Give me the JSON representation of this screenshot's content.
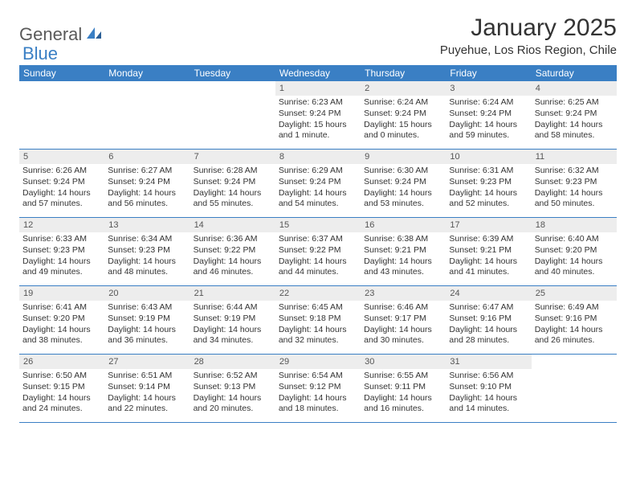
{
  "logo": {
    "part1": "General",
    "part2": "Blue"
  },
  "title": "January 2025",
  "location": "Puyehue, Los Rios Region, Chile",
  "colors": {
    "brand_blue": "#3a7fc4",
    "header_text": "#ffffff",
    "daynum_bg": "#ededed",
    "text": "#333333"
  },
  "day_headers": [
    "Sunday",
    "Monday",
    "Tuesday",
    "Wednesday",
    "Thursday",
    "Friday",
    "Saturday"
  ],
  "weeks": [
    [
      {
        "empty": true
      },
      {
        "empty": true
      },
      {
        "empty": true
      },
      {
        "n": "1",
        "sr": "Sunrise: 6:23 AM",
        "ss": "Sunset: 9:24 PM",
        "dl": "Daylight: 15 hours and 1 minute."
      },
      {
        "n": "2",
        "sr": "Sunrise: 6:24 AM",
        "ss": "Sunset: 9:24 PM",
        "dl": "Daylight: 15 hours and 0 minutes."
      },
      {
        "n": "3",
        "sr": "Sunrise: 6:24 AM",
        "ss": "Sunset: 9:24 PM",
        "dl": "Daylight: 14 hours and 59 minutes."
      },
      {
        "n": "4",
        "sr": "Sunrise: 6:25 AM",
        "ss": "Sunset: 9:24 PM",
        "dl": "Daylight: 14 hours and 58 minutes."
      }
    ],
    [
      {
        "n": "5",
        "sr": "Sunrise: 6:26 AM",
        "ss": "Sunset: 9:24 PM",
        "dl": "Daylight: 14 hours and 57 minutes."
      },
      {
        "n": "6",
        "sr": "Sunrise: 6:27 AM",
        "ss": "Sunset: 9:24 PM",
        "dl": "Daylight: 14 hours and 56 minutes."
      },
      {
        "n": "7",
        "sr": "Sunrise: 6:28 AM",
        "ss": "Sunset: 9:24 PM",
        "dl": "Daylight: 14 hours and 55 minutes."
      },
      {
        "n": "8",
        "sr": "Sunrise: 6:29 AM",
        "ss": "Sunset: 9:24 PM",
        "dl": "Daylight: 14 hours and 54 minutes."
      },
      {
        "n": "9",
        "sr": "Sunrise: 6:30 AM",
        "ss": "Sunset: 9:24 PM",
        "dl": "Daylight: 14 hours and 53 minutes."
      },
      {
        "n": "10",
        "sr": "Sunrise: 6:31 AM",
        "ss": "Sunset: 9:23 PM",
        "dl": "Daylight: 14 hours and 52 minutes."
      },
      {
        "n": "11",
        "sr": "Sunrise: 6:32 AM",
        "ss": "Sunset: 9:23 PM",
        "dl": "Daylight: 14 hours and 50 minutes."
      }
    ],
    [
      {
        "n": "12",
        "sr": "Sunrise: 6:33 AM",
        "ss": "Sunset: 9:23 PM",
        "dl": "Daylight: 14 hours and 49 minutes."
      },
      {
        "n": "13",
        "sr": "Sunrise: 6:34 AM",
        "ss": "Sunset: 9:23 PM",
        "dl": "Daylight: 14 hours and 48 minutes."
      },
      {
        "n": "14",
        "sr": "Sunrise: 6:36 AM",
        "ss": "Sunset: 9:22 PM",
        "dl": "Daylight: 14 hours and 46 minutes."
      },
      {
        "n": "15",
        "sr": "Sunrise: 6:37 AM",
        "ss": "Sunset: 9:22 PM",
        "dl": "Daylight: 14 hours and 44 minutes."
      },
      {
        "n": "16",
        "sr": "Sunrise: 6:38 AM",
        "ss": "Sunset: 9:21 PM",
        "dl": "Daylight: 14 hours and 43 minutes."
      },
      {
        "n": "17",
        "sr": "Sunrise: 6:39 AM",
        "ss": "Sunset: 9:21 PM",
        "dl": "Daylight: 14 hours and 41 minutes."
      },
      {
        "n": "18",
        "sr": "Sunrise: 6:40 AM",
        "ss": "Sunset: 9:20 PM",
        "dl": "Daylight: 14 hours and 40 minutes."
      }
    ],
    [
      {
        "n": "19",
        "sr": "Sunrise: 6:41 AM",
        "ss": "Sunset: 9:20 PM",
        "dl": "Daylight: 14 hours and 38 minutes."
      },
      {
        "n": "20",
        "sr": "Sunrise: 6:43 AM",
        "ss": "Sunset: 9:19 PM",
        "dl": "Daylight: 14 hours and 36 minutes."
      },
      {
        "n": "21",
        "sr": "Sunrise: 6:44 AM",
        "ss": "Sunset: 9:19 PM",
        "dl": "Daylight: 14 hours and 34 minutes."
      },
      {
        "n": "22",
        "sr": "Sunrise: 6:45 AM",
        "ss": "Sunset: 9:18 PM",
        "dl": "Daylight: 14 hours and 32 minutes."
      },
      {
        "n": "23",
        "sr": "Sunrise: 6:46 AM",
        "ss": "Sunset: 9:17 PM",
        "dl": "Daylight: 14 hours and 30 minutes."
      },
      {
        "n": "24",
        "sr": "Sunrise: 6:47 AM",
        "ss": "Sunset: 9:16 PM",
        "dl": "Daylight: 14 hours and 28 minutes."
      },
      {
        "n": "25",
        "sr": "Sunrise: 6:49 AM",
        "ss": "Sunset: 9:16 PM",
        "dl": "Daylight: 14 hours and 26 minutes."
      }
    ],
    [
      {
        "n": "26",
        "sr": "Sunrise: 6:50 AM",
        "ss": "Sunset: 9:15 PM",
        "dl": "Daylight: 14 hours and 24 minutes."
      },
      {
        "n": "27",
        "sr": "Sunrise: 6:51 AM",
        "ss": "Sunset: 9:14 PM",
        "dl": "Daylight: 14 hours and 22 minutes."
      },
      {
        "n": "28",
        "sr": "Sunrise: 6:52 AM",
        "ss": "Sunset: 9:13 PM",
        "dl": "Daylight: 14 hours and 20 minutes."
      },
      {
        "n": "29",
        "sr": "Sunrise: 6:54 AM",
        "ss": "Sunset: 9:12 PM",
        "dl": "Daylight: 14 hours and 18 minutes."
      },
      {
        "n": "30",
        "sr": "Sunrise: 6:55 AM",
        "ss": "Sunset: 9:11 PM",
        "dl": "Daylight: 14 hours and 16 minutes."
      },
      {
        "n": "31",
        "sr": "Sunrise: 6:56 AM",
        "ss": "Sunset: 9:10 PM",
        "dl": "Daylight: 14 hours and 14 minutes."
      },
      {
        "empty": true
      }
    ]
  ]
}
